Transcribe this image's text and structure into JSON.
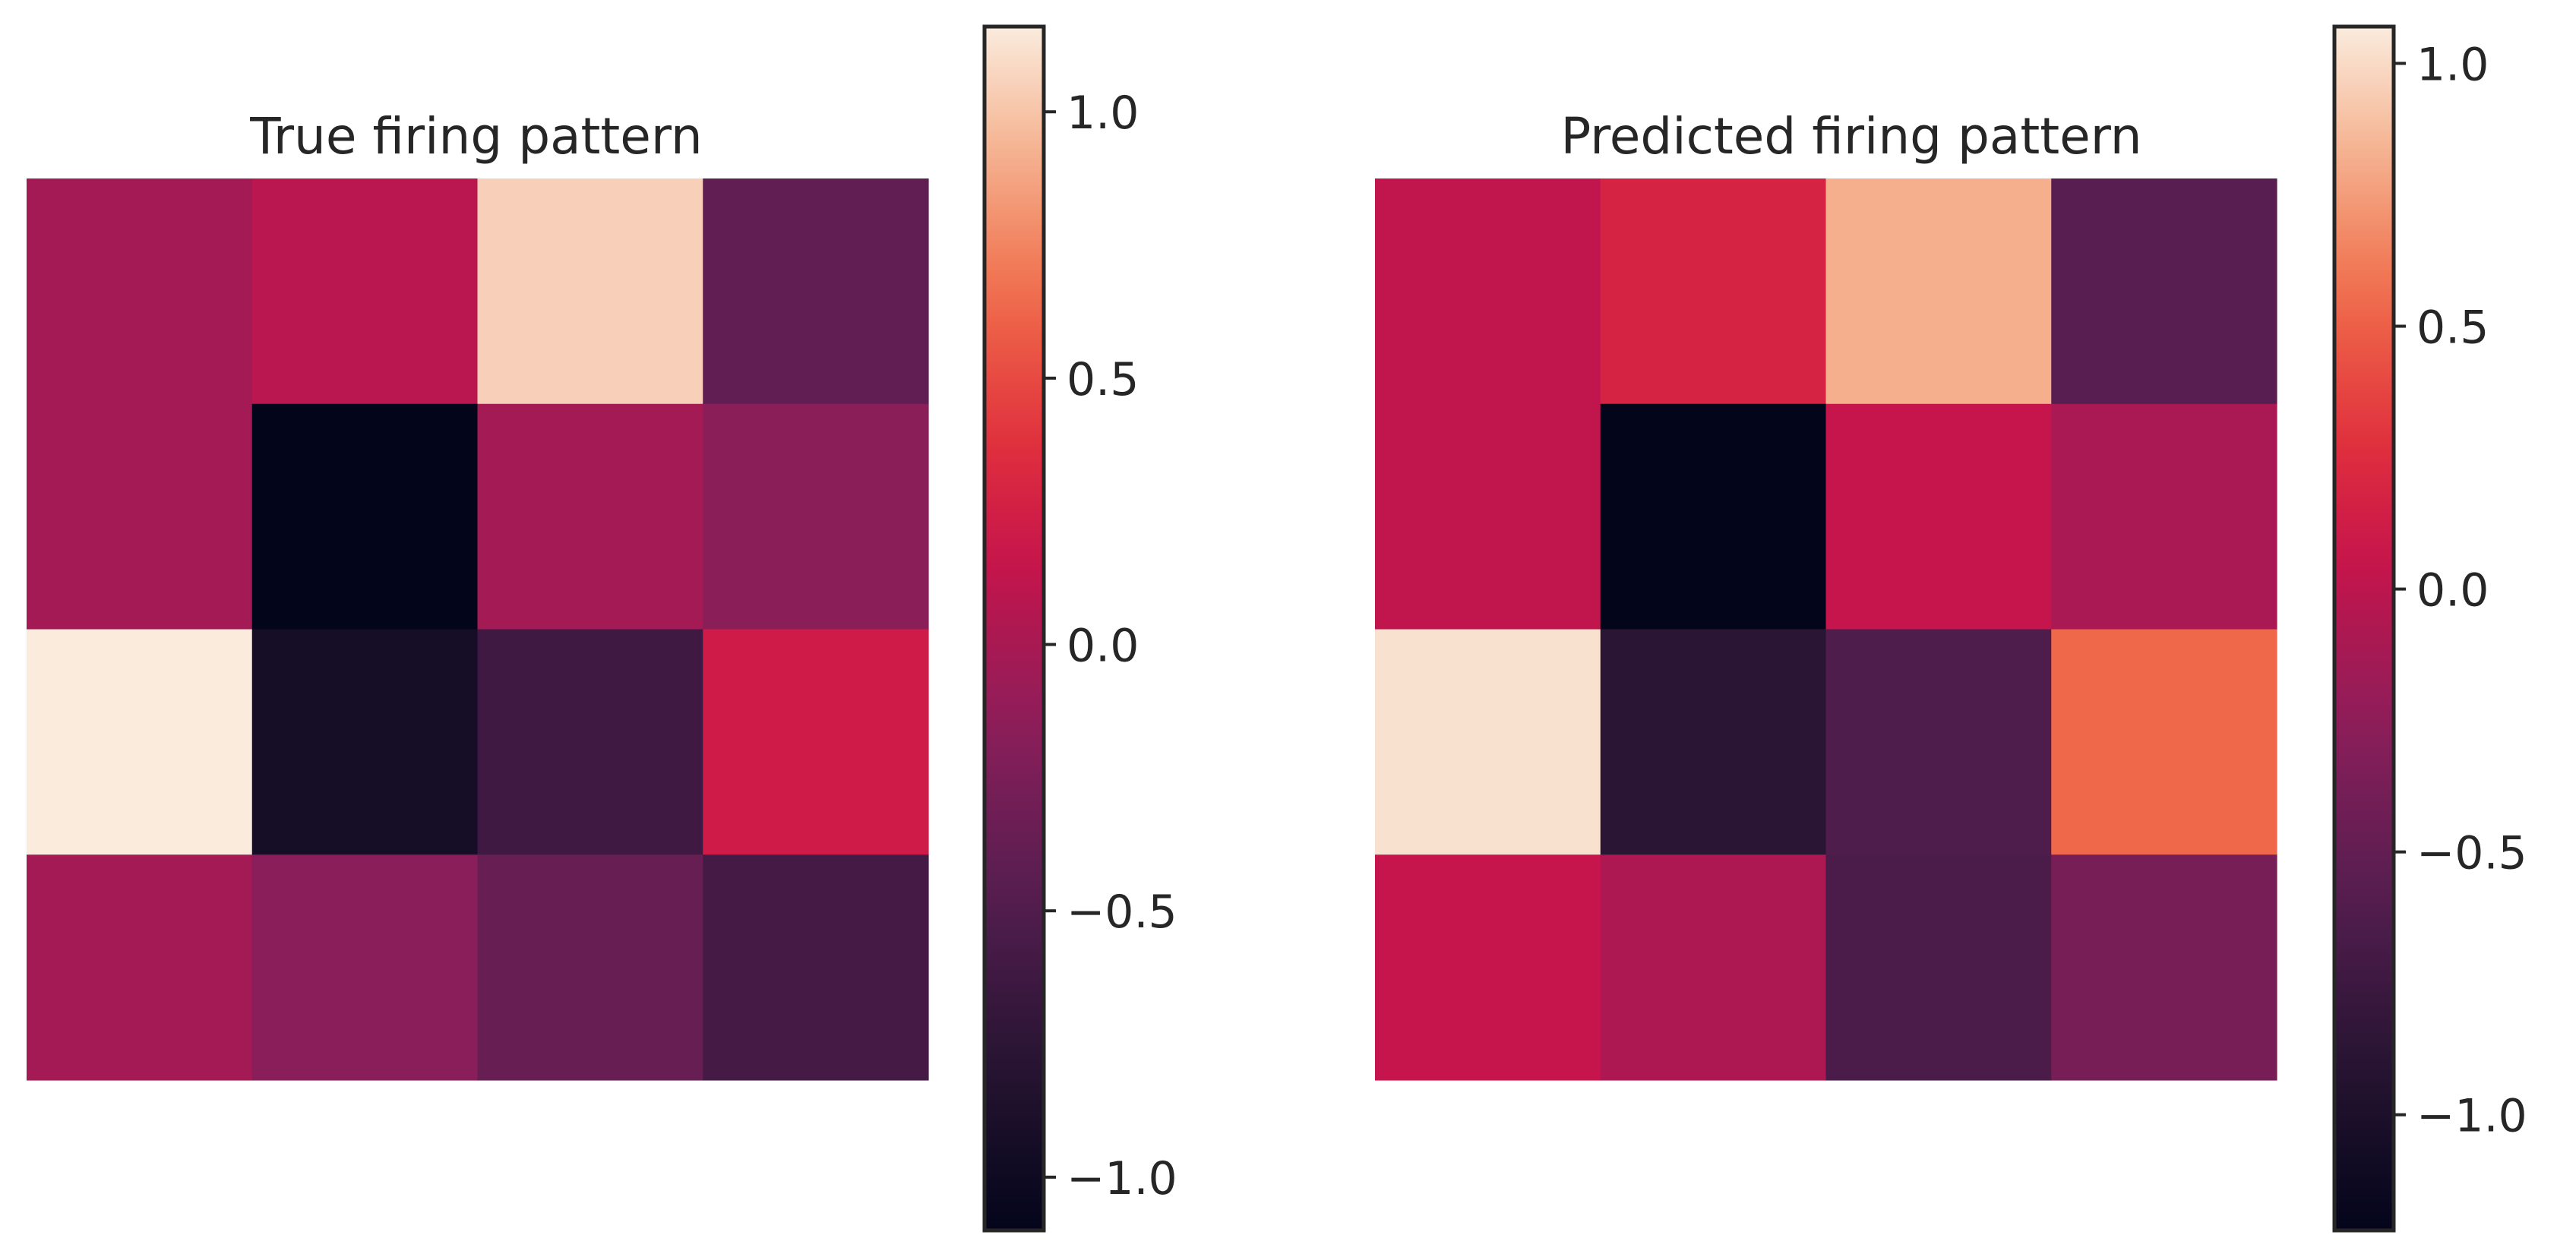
{
  "chart_data": [
    {
      "type": "heatmap",
      "title": "True firing pattern",
      "rows": 4,
      "cols": 4,
      "values": [
        [
          -0.03,
          0.09,
          1.05,
          -0.4
        ],
        [
          -0.03,
          -1.1,
          -0.03,
          -0.17
        ],
        [
          1.16,
          -0.94,
          -0.62,
          0.22
        ],
        [
          -0.03,
          -0.16,
          -0.37,
          -0.58
        ]
      ],
      "vmin": -1.1,
      "vmax": 1.16,
      "colorbar": {
        "ticks": [
          -1.0,
          -0.5,
          0.0,
          0.5,
          1.0
        ],
        "tick_labels": [
          "−1.0",
          "−0.5",
          "0.0",
          "0.5",
          "1.0"
        ]
      },
      "colormap": "rocket",
      "axes_visible": false
    },
    {
      "type": "heatmap",
      "title": "Predicted firing pattern",
      "rows": 4,
      "cols": 4,
      "values": [
        [
          0.02,
          0.18,
          0.82,
          -0.56
        ],
        [
          0.02,
          -1.22,
          0.05,
          -0.1
        ],
        [
          1.03,
          -0.88,
          -0.62,
          0.54
        ],
        [
          0.05,
          -0.08,
          -0.65,
          -0.38
        ]
      ],
      "vmin": -1.22,
      "vmax": 1.07,
      "colorbar": {
        "ticks": [
          -1.0,
          -0.5,
          0.0,
          0.5,
          1.0
        ],
        "tick_labels": [
          "−1.0",
          "−0.5",
          "0.0",
          "0.5",
          "1.0"
        ]
      },
      "colormap": "rocket",
      "axes_visible": false
    }
  ]
}
